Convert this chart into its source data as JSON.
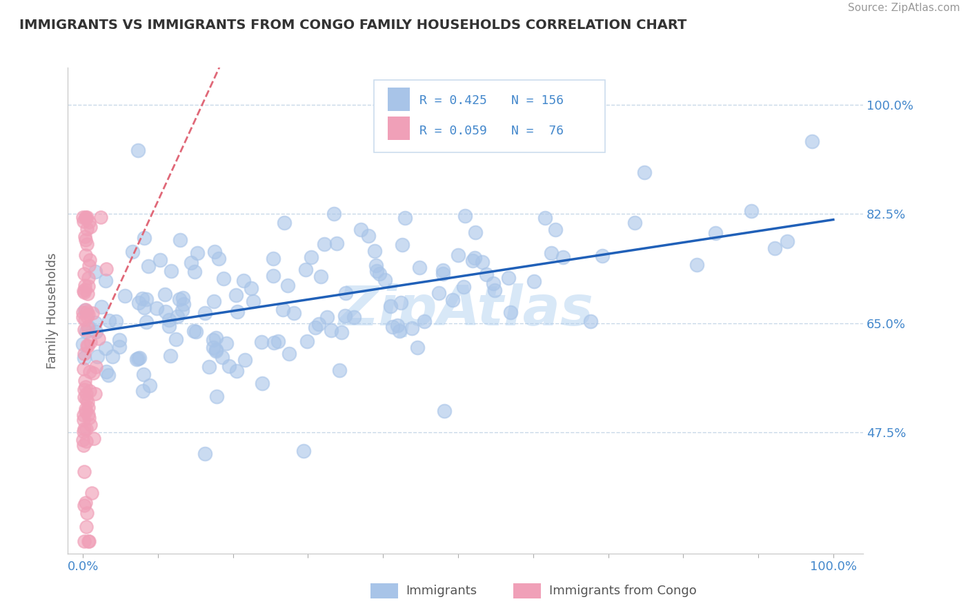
{
  "title": "IMMIGRANTS VS IMMIGRANTS FROM CONGO FAMILY HOUSEHOLDS CORRELATION CHART",
  "source": "Source: ZipAtlas.com",
  "ylabel": "Family Households",
  "y_tick_vals": [
    0.475,
    0.65,
    0.825,
    1.0
  ],
  "y_tick_labels": [
    "47.5%",
    "65.0%",
    "82.5%",
    "100.0%"
  ],
  "xlim": [
    -0.02,
    1.04
  ],
  "ylim": [
    0.28,
    1.06
  ],
  "blue_color": "#a8c4e8",
  "blue_line_color": "#2060b8",
  "pink_color": "#f0a0b8",
  "pink_line_color": "#e06878",
  "pink_line_style": "--",
  "axis_color": "#4488cc",
  "grid_color": "#c8d8e8",
  "watermark": "ZipAtlas",
  "watermark_color": "#aaccee",
  "legend_R1": "R = 0.425",
  "legend_N1": "N = 156",
  "legend_R2": "R = 0.059",
  "legend_N2": "N =  76",
  "legend_label1": "Immigrants",
  "legend_label2": "Immigrants from Congo",
  "blue_R": 0.425,
  "blue_N": 156,
  "pink_R": 0.059,
  "pink_N": 76
}
